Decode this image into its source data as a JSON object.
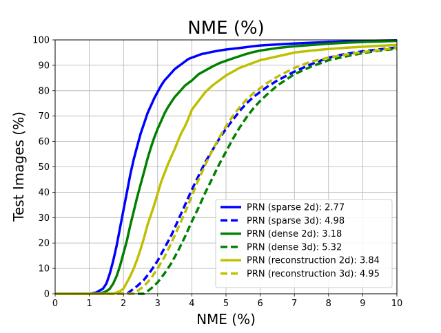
{
  "chart_data": {
    "type": "line",
    "title": "NME (%)",
    "xlabel": "NME (%)",
    "ylabel": "Test Images (%)",
    "xlim": [
      0,
      10
    ],
    "ylim": [
      0,
      100
    ],
    "xticks": [
      0,
      1,
      2,
      3,
      4,
      5,
      6,
      7,
      8,
      9,
      10
    ],
    "yticks": [
      0,
      10,
      20,
      30,
      40,
      50,
      60,
      70,
      80,
      90,
      100
    ],
    "grid": true,
    "legend_position": "lower-right",
    "series": [
      {
        "name": "PRN (sparse 2d): 2.77",
        "color": "#0000ff",
        "style": "solid",
        "x": [
          0,
          1.0,
          1.2,
          1.4,
          1.5,
          1.6,
          1.7,
          1.8,
          1.9,
          2.0,
          2.1,
          2.2,
          2.3,
          2.4,
          2.5,
          2.6,
          2.7,
          2.8,
          2.9,
          3.0,
          3.1,
          3.2,
          3.3,
          3.4,
          3.5,
          3.6,
          3.7,
          3.8,
          3.9,
          4.0,
          4.1,
          4.2,
          4.3,
          4.4,
          4.5,
          4.6,
          4.8,
          5.0,
          5.2,
          5.5,
          5.8,
          6.0,
          6.5,
          7.0,
          7.5,
          8.0,
          8.5,
          9.0,
          10.0
        ],
        "y": [
          0,
          0,
          0.5,
          2,
          4,
          8,
          13,
          19,
          26,
          33,
          40,
          47,
          53,
          58,
          63,
          67,
          71,
          74,
          77,
          79.5,
          82,
          84,
          85.5,
          87,
          88.5,
          89.5,
          90.5,
          91.5,
          92.5,
          93,
          93.5,
          94,
          94.5,
          94.7,
          95,
          95.3,
          95.8,
          96.2,
          96.5,
          97,
          97.5,
          97.8,
          98.2,
          98.6,
          98.9,
          99.2,
          99.4,
          99.6,
          99.8
        ]
      },
      {
        "name": "PRN (sparse 3d): 4.98",
        "color": "#0000ff",
        "style": "dashed",
        "x": [
          0,
          2.1,
          2.2,
          2.4,
          2.6,
          2.8,
          3.0,
          3.2,
          3.4,
          3.6,
          3.8,
          4.0,
          4.2,
          4.4,
          4.6,
          4.8,
          5.0,
          5.2,
          5.4,
          5.6,
          5.8,
          6.0,
          6.2,
          6.5,
          7.0,
          7.5,
          8.0,
          8.5,
          9.0,
          9.5,
          10.0
        ],
        "y": [
          0,
          0,
          1,
          3,
          5.5,
          9,
          13,
          18,
          23,
          29,
          35,
          41,
          46.5,
          52,
          56.5,
          61,
          65,
          68.5,
          72,
          75,
          77.5,
          79.5,
          81.5,
          84,
          87.5,
          90.5,
          93,
          94.5,
          95.5,
          96.3,
          97
        ]
      },
      {
        "name": "PRN (dense 2d): 3.18",
        "color": "#008000",
        "style": "solid",
        "x": [
          0,
          1.2,
          1.4,
          1.5,
          1.6,
          1.7,
          1.8,
          1.9,
          2.0,
          2.1,
          2.2,
          2.3,
          2.4,
          2.5,
          2.6,
          2.7,
          2.8,
          2.9,
          3.0,
          3.1,
          3.2,
          3.3,
          3.4,
          3.5,
          3.6,
          3.7,
          3.8,
          3.9,
          4.0,
          4.2,
          4.4,
          4.6,
          4.8,
          5.0,
          5.2,
          5.4,
          5.6,
          5.8,
          6.0,
          6.5,
          7.0,
          7.5,
          8.0,
          8.5,
          9.0,
          10.0
        ],
        "y": [
          0,
          0,
          0.5,
          1,
          2,
          4,
          7,
          11,
          16,
          21,
          27,
          32.5,
          38,
          43,
          48,
          53,
          57.5,
          61.5,
          65,
          68,
          71,
          73.5,
          75.5,
          77.5,
          79,
          80.5,
          82,
          83,
          84,
          86.5,
          88,
          89.5,
          90.8,
          91.8,
          92.7,
          93.6,
          94.5,
          95.2,
          95.8,
          96.8,
          97.5,
          98,
          98.5,
          98.9,
          99.2,
          99.6
        ]
      },
      {
        "name": "PRN (dense 3d): 5.32",
        "color": "#008000",
        "style": "dashed",
        "x": [
          0,
          2.6,
          2.8,
          3.0,
          3.2,
          3.4,
          3.6,
          3.8,
          4.0,
          4.2,
          4.4,
          4.6,
          4.8,
          5.0,
          5.2,
          5.4,
          5.6,
          5.8,
          6.0,
          6.2,
          6.5,
          7.0,
          7.5,
          8.0,
          8.5,
          9.0,
          9.5,
          10.0
        ],
        "y": [
          0,
          0,
          2,
          4.5,
          8,
          12,
          17,
          22.5,
          28.5,
          34,
          40,
          45.5,
          51,
          56,
          61,
          65.5,
          69.5,
          73,
          76,
          78.5,
          82,
          86.5,
          89.5,
          92,
          93.5,
          94.8,
          95.8,
          96.5
        ]
      },
      {
        "name": "PRN (reconstruction 2d): 3.84",
        "color": "#bfbf00",
        "style": "solid",
        "x": [
          0,
          1.7,
          1.9,
          2.0,
          2.1,
          2.2,
          2.3,
          2.4,
          2.5,
          2.6,
          2.7,
          2.8,
          2.9,
          3.0,
          3.1,
          3.2,
          3.3,
          3.4,
          3.5,
          3.6,
          3.7,
          3.8,
          3.9,
          4.0,
          4.2,
          4.4,
          4.6,
          4.8,
          5.0,
          5.2,
          5.4,
          5.6,
          5.8,
          6.0,
          6.5,
          7.0,
          7.5,
          8.0,
          8.5,
          9.0,
          9.5,
          10.0
        ],
        "y": [
          0,
          0,
          1,
          2,
          4.5,
          7,
          10,
          13.5,
          17.5,
          22,
          27,
          31,
          35,
          39.5,
          44,
          47.5,
          51,
          54,
          57,
          60.5,
          63.5,
          66,
          69,
          72.5,
          76,
          79.5,
          82,
          84,
          86,
          87.5,
          89,
          90,
          91,
          92,
          93.5,
          95,
          95.8,
          96.4,
          96.9,
          97.3,
          97.7,
          98
        ]
      },
      {
        "name": "PRN (reconstruction 3d): 4.95",
        "color": "#bfbf00",
        "style": "dashed",
        "x": [
          0,
          2.3,
          2.4,
          2.6,
          2.8,
          3.0,
          3.2,
          3.4,
          3.6,
          3.8,
          4.0,
          4.2,
          4.4,
          4.6,
          4.8,
          5.0,
          5.2,
          5.4,
          5.6,
          5.8,
          6.0,
          6.2,
          6.5,
          7.0,
          7.5,
          8.0,
          8.5,
          9.0,
          9.5,
          10.0
        ],
        "y": [
          0,
          0,
          1,
          3,
          6,
          10,
          14.5,
          20,
          26,
          32,
          38.5,
          45,
          51,
          56.5,
          61.5,
          66,
          70,
          73.5,
          76.5,
          79,
          81,
          83,
          85.5,
          89,
          91.5,
          93,
          94.2,
          95.2,
          96,
          96.8
        ]
      }
    ]
  }
}
